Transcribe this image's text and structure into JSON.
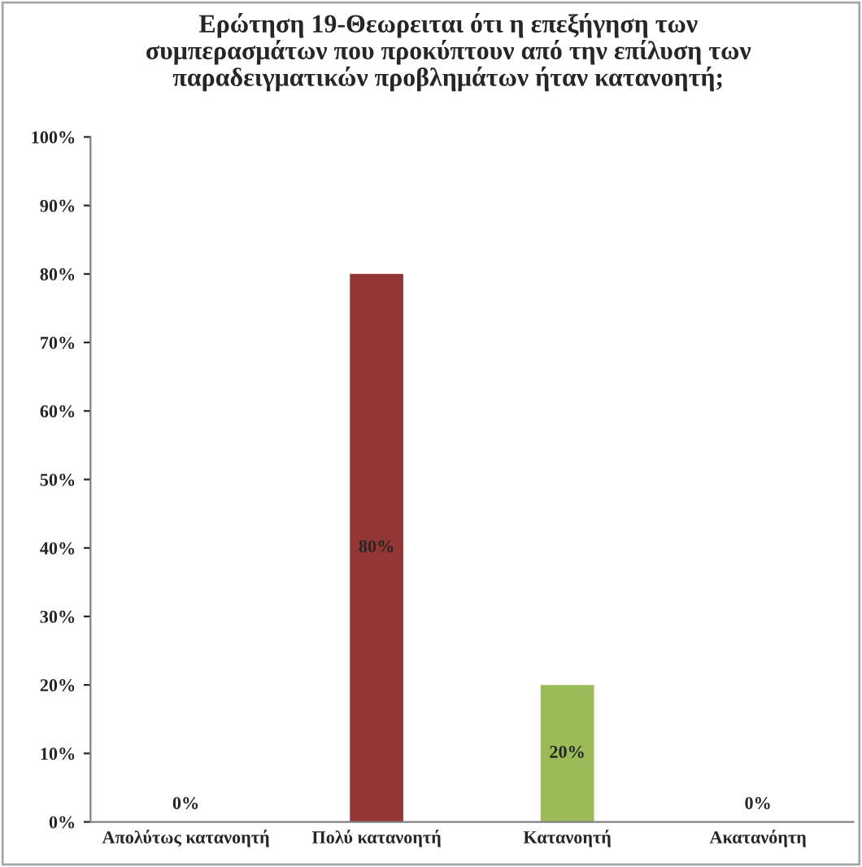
{
  "chart_data": {
    "type": "bar",
    "title": "Ερώτηση 19-Θεωρειται ότι η επεξήγηση των\nσυμπερασμάτων που προκύπτουν από την επίλυση των\nπαραδειγματικών προβλημάτων ήταν κατανοητή;",
    "categories": [
      "Απολύτως κατανοητή",
      "Πολύ κατανοητή",
      "Κατανοητή",
      "Ακατανόητη"
    ],
    "values": [
      0,
      80,
      20,
      0
    ],
    "colors": [
      "#4f81bd",
      "#943634",
      "#9bbb59",
      "#8064a2"
    ],
    "value_labels": [
      "0%",
      "80%",
      "20%",
      "0%"
    ],
    "ylim": [
      0,
      100
    ],
    "yticks": [
      {
        "value": 0,
        "label": "0%"
      },
      {
        "value": 10,
        "label": "10%"
      },
      {
        "value": 20,
        "label": "20%"
      },
      {
        "value": 30,
        "label": "30%"
      },
      {
        "value": 40,
        "label": "40%"
      },
      {
        "value": 50,
        "label": "50%"
      },
      {
        "value": 60,
        "label": "60%"
      },
      {
        "value": 70,
        "label": "70%"
      },
      {
        "value": 80,
        "label": "80%"
      },
      {
        "value": 90,
        "label": "90%"
      },
      {
        "value": 100,
        "label": "100%"
      }
    ],
    "grid": false,
    "legend": false
  }
}
